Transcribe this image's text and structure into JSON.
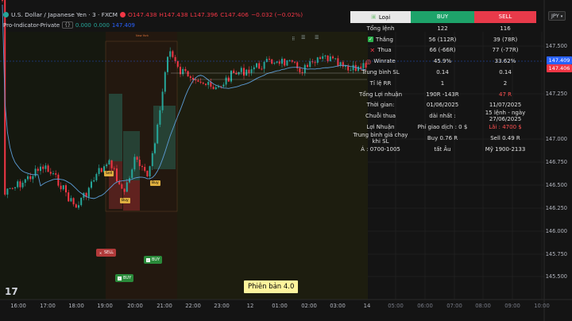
{
  "header": {
    "symbol": "U.S. Dollar / Japanese Yen · 3 · FXCM",
    "open": "O147.438",
    "high": "H147.438",
    "low": "L147.396",
    "close": "C147.406",
    "change": "−0.032 (−0.02%)",
    "indicator": "Pro-Indicator-Private",
    "ind_v1": "0.000",
    "ind_v2": "0.000",
    "ind_v3": "147.409"
  },
  "price_scale": {
    "currency": "JPY",
    "labels": [
      "147.500",
      "147.250",
      "147.000",
      "146.750",
      "146.500",
      "146.250",
      "146.000",
      "145.750",
      "145.500"
    ],
    "tag_blue": "147.409",
    "tag_red": "147.406"
  },
  "time_axis": {
    "labels": [
      "16:00",
      "17:00",
      "18:00",
      "19:00",
      "20:00",
      "21:00",
      "22:00",
      "23:00",
      "12",
      "01:00",
      "02:00",
      "03:00",
      "14",
      "05:00",
      "06:00",
      "07:00",
      "08:00",
      "09:00",
      "10:00"
    ]
  },
  "stats": {
    "head": {
      "label": "Loại",
      "buy": "BUY",
      "sell": "SELL"
    },
    "rows": [
      {
        "label": "Tổng lệnh",
        "buy": "122",
        "sell": "116",
        "icon": ""
      },
      {
        "label": "Thắng",
        "buy": "56 (112R)",
        "sell": "39 (78R)",
        "icon": "check-icon"
      },
      {
        "label": "Thua",
        "buy": "66 (-66R)",
        "sell": "77 (-77R)",
        "icon": "x-icon"
      },
      {
        "label": "Winrate",
        "buy": "45.9%",
        "sell": "33.62%",
        "icon": "target-icon"
      },
      {
        "label": "Trung bình SL",
        "buy": "0.14",
        "sell": "0.14",
        "icon": ""
      },
      {
        "label": "Tỉ lệ RR",
        "buy": "1",
        "sell": "2",
        "icon": ""
      },
      {
        "label": "Tổng Lợi nhuận",
        "buy": "190R -143R",
        "sell": "47 R",
        "icon": "",
        "sell_red": true
      },
      {
        "label": "Thời gian:",
        "buy": "01/06/2025",
        "sell": "11/07/2025",
        "icon": ""
      },
      {
        "label": "Chuỗi thua",
        "buy": "dài nhất :",
        "sell": "15 lệnh - ngày 27/06/2025",
        "icon": ""
      },
      {
        "label": "Lợi Nhuận",
        "buy": "Phí giao dịch : 0 $",
        "sell": "Lãi : 4700 $",
        "icon": "",
        "sell_red": true
      },
      {
        "label": "Trung bình giá chạy khi SL",
        "buy": "Buy 0.76 R",
        "sell": "Sell 0.49 R",
        "icon": ""
      },
      {
        "label": "Á : 0700-1005",
        "buy": "tất Âu",
        "sell": "Mỹ 1900-2133",
        "icon": ""
      }
    ]
  },
  "signals": {
    "sell_label": "SELL",
    "buy_label": "BUY",
    "buy2_label": "BUY"
  },
  "chart_labels": {
    "newyork": "New York",
    "tiny_sell": "Sell",
    "tiny_buy": "Buy",
    "tiny_buy2": "Buy"
  },
  "version": "Phiên bản 4.0",
  "logo": "17",
  "colors": {
    "up": "#26a69a",
    "down": "#f23645",
    "ma": "#5b9bd5",
    "buy": "#1ea36a",
    "sell": "#e83a4a"
  }
}
